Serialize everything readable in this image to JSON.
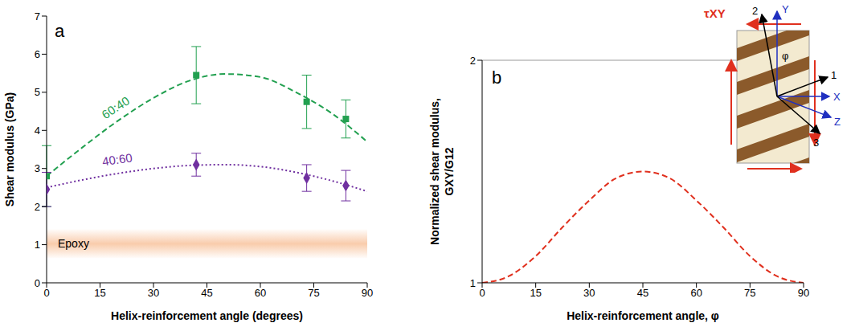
{
  "chart_data": [
    {
      "type": "scatter",
      "panel": "a",
      "x_label": "Helix-reinforcement angle (degrees)",
      "y_label": "Shear modulus (GPa)",
      "xlim": [
        0,
        90
      ],
      "xticks": [
        0,
        15,
        30,
        45,
        60,
        75,
        90
      ],
      "ylim": [
        0,
        7
      ],
      "yticks": [
        0,
        1,
        2,
        3,
        4,
        5,
        6,
        7
      ],
      "grid": false,
      "series": [
        {
          "name": "60:40",
          "color": "#22a050",
          "marker": "square",
          "x": [
            0,
            42,
            73,
            84
          ],
          "values": [
            2.8,
            5.45,
            4.75,
            4.3
          ],
          "errors": [
            0.8,
            0.75,
            0.7,
            0.5
          ],
          "fit": {
            "x": [
              0,
              10,
              20,
              30,
              40,
              50,
              60,
              70,
              80,
              90
            ],
            "values": [
              2.8,
              3.55,
              4.25,
              4.85,
              5.3,
              5.48,
              5.4,
              5.0,
              4.45,
              3.7
            ],
            "line_style": "dashed"
          }
        },
        {
          "name": "40:60",
          "color": "#7030a0",
          "marker": "diamond",
          "x": [
            0,
            42,
            73,
            84
          ],
          "values": [
            2.45,
            3.1,
            2.75,
            2.55
          ],
          "errors": [
            0.45,
            0.3,
            0.35,
            0.4
          ],
          "fit": {
            "x": [
              0,
              10,
              20,
              30,
              40,
              50,
              60,
              70,
              80,
              90
            ],
            "values": [
              2.5,
              2.7,
              2.87,
              3.0,
              3.08,
              3.1,
              3.05,
              2.9,
              2.68,
              2.4
            ],
            "line_style": "dotted"
          }
        }
      ],
      "annotations": {
        "band": {
          "label": "Epoxy",
          "range": [
            0.65,
            1.4
          ],
          "color": "#f08030"
        }
      }
    },
    {
      "type": "line",
      "panel": "b",
      "x_label": "Helix-reinforcement angle, φ",
      "y_label": "Normalized shear modulus, GXY/G12",
      "xlim": [
        0,
        90
      ],
      "xticks": [
        0,
        15,
        30,
        45,
        60,
        75,
        90
      ],
      "ylim": [
        1,
        2
      ],
      "yticks": [
        1,
        2
      ],
      "grid": false,
      "x": [
        0,
        7.5,
        15,
        22.5,
        30,
        37.5,
        45,
        52.5,
        60,
        67.5,
        75,
        82.5,
        90
      ],
      "values": [
        1.0,
        1.03,
        1.12,
        1.25,
        1.37,
        1.47,
        1.5,
        1.47,
        1.37,
        1.25,
        1.12,
        1.03,
        1.0
      ],
      "color": "#e0301e",
      "line_style": "dashed",
      "annotations": {
        "shear": "τXY",
        "y": "Y",
        "x": "X",
        "z": "Z",
        "axis1": "1",
        "axis2": "2",
        "axis3": "3",
        "angle": "φ"
      }
    }
  ]
}
